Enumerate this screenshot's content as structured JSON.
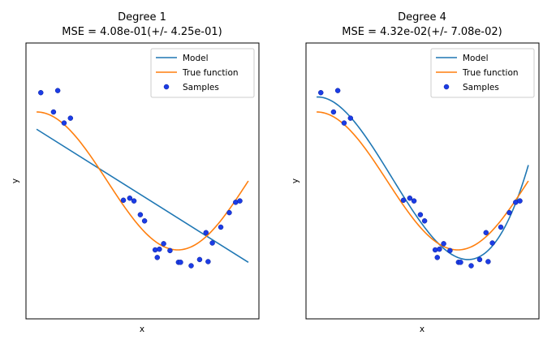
{
  "chart_data": [
    {
      "type": "scatter",
      "title": "Degree 1",
      "subtitle": "MSE = 4.08e-01(+/- 4.25e-01)",
      "xlabel": "x",
      "ylabel": "y",
      "xlim": [
        -0.05,
        1.05
      ],
      "ylim": [
        -2,
        2
      ],
      "ticks": "hidden",
      "legend": {
        "position": "top-right",
        "entries": [
          "Model",
          "True function",
          "Samples"
        ]
      },
      "colors": {
        "model": "#1f77b4",
        "true_function": "#ff7f0e",
        "samples": "#1b3ce5"
      },
      "series": [
        {
          "name": "Model",
          "kind": "line",
          "x": [
            0.0,
            1.0
          ],
          "y": [
            0.75,
            -1.18
          ]
        },
        {
          "name": "True function",
          "kind": "line",
          "function": "cos(1.5*pi*x)",
          "x_range": [
            0.0,
            1.0
          ]
        },
        {
          "name": "Samples",
          "kind": "scatter",
          "x": [
            0.02,
            0.08,
            0.1,
            0.13,
            0.16,
            0.41,
            0.44,
            0.46,
            0.49,
            0.51,
            0.56,
            0.57,
            0.58,
            0.6,
            0.63,
            0.67,
            0.68,
            0.73,
            0.77,
            0.8,
            0.81,
            0.83,
            0.87,
            0.91,
            0.94,
            0.96
          ],
          "y": [
            1.28,
            1.0,
            1.31,
            0.84,
            0.91,
            -0.28,
            -0.25,
            -0.29,
            -0.49,
            -0.58,
            -1.0,
            -1.11,
            -0.99,
            -0.91,
            -1.01,
            -1.18,
            -1.18,
            -1.23,
            -1.14,
            -0.75,
            -1.17,
            -0.9,
            -0.67,
            -0.46,
            -0.31,
            -0.29
          ]
        }
      ]
    },
    {
      "type": "scatter",
      "title": "Degree 4",
      "subtitle": "MSE = 4.32e-02(+/- 7.08e-02)",
      "xlabel": "x",
      "ylabel": "y",
      "xlim": [
        -0.05,
        1.05
      ],
      "ylim": [
        -2,
        2
      ],
      "ticks": "hidden",
      "legend": {
        "position": "top-right",
        "entries": [
          "Model",
          "True function",
          "Samples"
        ]
      },
      "colors": {
        "model": "#1f77b4",
        "true_function": "#ff7f0e",
        "samples": "#1b3ce5"
      },
      "series": [
        {
          "name": "Model",
          "kind": "line",
          "function": "degree-4 polynomial fit",
          "x_range": [
            0.0,
            1.0
          ]
        },
        {
          "name": "True function",
          "kind": "line",
          "function": "cos(1.5*pi*x)",
          "x_range": [
            0.0,
            1.0
          ]
        },
        {
          "name": "Samples",
          "kind": "scatter",
          "x": [
            0.02,
            0.08,
            0.1,
            0.13,
            0.16,
            0.41,
            0.44,
            0.46,
            0.49,
            0.51,
            0.56,
            0.57,
            0.58,
            0.6,
            0.63,
            0.67,
            0.68,
            0.73,
            0.77,
            0.8,
            0.81,
            0.83,
            0.87,
            0.91,
            0.94,
            0.96
          ],
          "y": [
            1.28,
            1.0,
            1.31,
            0.84,
            0.91,
            -0.28,
            -0.25,
            -0.29,
            -0.49,
            -0.58,
            -1.0,
            -1.11,
            -0.99,
            -0.91,
            -1.01,
            -1.18,
            -1.18,
            -1.23,
            -1.14,
            -0.75,
            -1.17,
            -0.9,
            -0.67,
            -0.46,
            -0.31,
            -0.29
          ]
        }
      ]
    }
  ]
}
